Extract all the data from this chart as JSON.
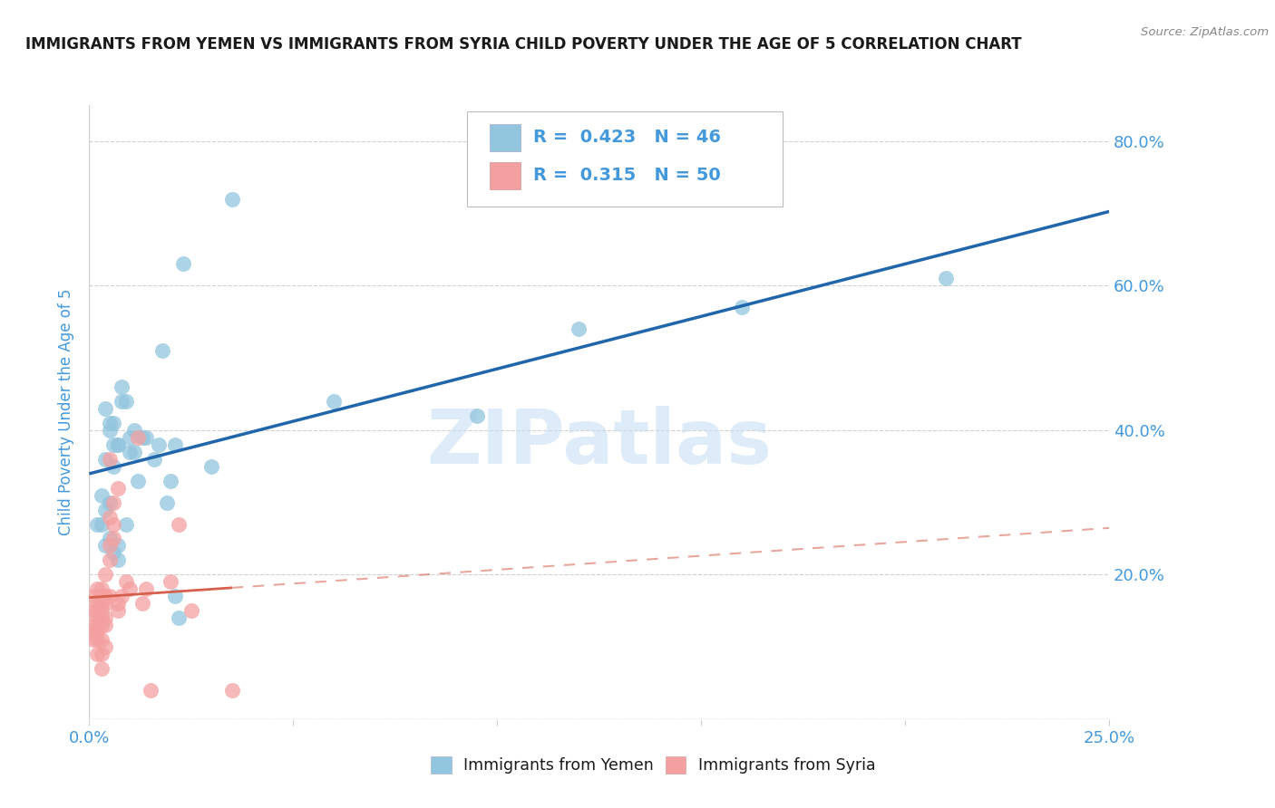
{
  "title": "IMMIGRANTS FROM YEMEN VS IMMIGRANTS FROM SYRIA CHILD POVERTY UNDER THE AGE OF 5 CORRELATION CHART",
  "source": "Source: ZipAtlas.com",
  "ylabel": "Child Poverty Under the Age of 5",
  "xlim": [
    0.0,
    0.25
  ],
  "ylim": [
    0.0,
    0.85
  ],
  "xticks": [
    0.0,
    0.05,
    0.1,
    0.15,
    0.2,
    0.25
  ],
  "xtick_labels": [
    "0.0%",
    "",
    "",
    "",
    "",
    "25.0%"
  ],
  "yticks": [
    0.0,
    0.2,
    0.4,
    0.6,
    0.8
  ],
  "ytick_labels_right": [
    "",
    "20.0%",
    "40.0%",
    "60.0%",
    "80.0%"
  ],
  "legend_r1": "0.423",
  "legend_n1": "46",
  "legend_r2": "0.315",
  "legend_n2": "50",
  "watermark": "ZIPatlas",
  "yemen_color": "#92c5de",
  "syria_color": "#f4a0a0",
  "yemen_line_color": "#2166ac",
  "syria_solid_color": "#d6604d",
  "syria_dash_color": "#f4a0a0",
  "grid_color": "#d0d0d0",
  "tick_color": "#4499dd",
  "title_color": "#1a1a1a",
  "source_color": "#888888",
  "bg_color": "#ffffff",
  "watermark_color": "#c8dff5",
  "yemen_scatter": [
    [
      0.002,
      0.27
    ],
    [
      0.003,
      0.31
    ],
    [
      0.003,
      0.27
    ],
    [
      0.004,
      0.24
    ],
    [
      0.004,
      0.29
    ],
    [
      0.004,
      0.43
    ],
    [
      0.004,
      0.36
    ],
    [
      0.005,
      0.25
    ],
    [
      0.005,
      0.3
    ],
    [
      0.005,
      0.4
    ],
    [
      0.005,
      0.41
    ],
    [
      0.006,
      0.23
    ],
    [
      0.006,
      0.35
    ],
    [
      0.006,
      0.38
    ],
    [
      0.006,
      0.41
    ],
    [
      0.007,
      0.22
    ],
    [
      0.007,
      0.24
    ],
    [
      0.007,
      0.38
    ],
    [
      0.007,
      0.38
    ],
    [
      0.008,
      0.44
    ],
    [
      0.008,
      0.46
    ],
    [
      0.009,
      0.27
    ],
    [
      0.009,
      0.44
    ],
    [
      0.01,
      0.37
    ],
    [
      0.01,
      0.39
    ],
    [
      0.011,
      0.37
    ],
    [
      0.011,
      0.4
    ],
    [
      0.012,
      0.33
    ],
    [
      0.013,
      0.39
    ],
    [
      0.014,
      0.39
    ],
    [
      0.016,
      0.36
    ],
    [
      0.017,
      0.38
    ],
    [
      0.018,
      0.51
    ],
    [
      0.019,
      0.3
    ],
    [
      0.02,
      0.33
    ],
    [
      0.021,
      0.38
    ],
    [
      0.021,
      0.17
    ],
    [
      0.022,
      0.14
    ],
    [
      0.023,
      0.63
    ],
    [
      0.03,
      0.35
    ],
    [
      0.035,
      0.72
    ],
    [
      0.06,
      0.44
    ],
    [
      0.095,
      0.42
    ],
    [
      0.12,
      0.54
    ],
    [
      0.16,
      0.57
    ],
    [
      0.21,
      0.61
    ]
  ],
  "syria_scatter": [
    [
      0.001,
      0.17
    ],
    [
      0.001,
      0.15
    ],
    [
      0.001,
      0.13
    ],
    [
      0.001,
      0.12
    ],
    [
      0.001,
      0.11
    ],
    [
      0.002,
      0.18
    ],
    [
      0.002,
      0.16
    ],
    [
      0.002,
      0.15
    ],
    [
      0.002,
      0.14
    ],
    [
      0.002,
      0.13
    ],
    [
      0.002,
      0.12
    ],
    [
      0.002,
      0.11
    ],
    [
      0.002,
      0.09
    ],
    [
      0.003,
      0.18
    ],
    [
      0.003,
      0.17
    ],
    [
      0.003,
      0.16
    ],
    [
      0.003,
      0.15
    ],
    [
      0.003,
      0.14
    ],
    [
      0.003,
      0.13
    ],
    [
      0.003,
      0.11
    ],
    [
      0.003,
      0.09
    ],
    [
      0.003,
      0.07
    ],
    [
      0.004,
      0.2
    ],
    [
      0.004,
      0.17
    ],
    [
      0.004,
      0.16
    ],
    [
      0.004,
      0.14
    ],
    [
      0.004,
      0.13
    ],
    [
      0.004,
      0.1
    ],
    [
      0.005,
      0.36
    ],
    [
      0.005,
      0.28
    ],
    [
      0.005,
      0.24
    ],
    [
      0.005,
      0.22
    ],
    [
      0.005,
      0.17
    ],
    [
      0.006,
      0.3
    ],
    [
      0.006,
      0.27
    ],
    [
      0.006,
      0.25
    ],
    [
      0.007,
      0.32
    ],
    [
      0.007,
      0.16
    ],
    [
      0.007,
      0.15
    ],
    [
      0.008,
      0.17
    ],
    [
      0.009,
      0.19
    ],
    [
      0.01,
      0.18
    ],
    [
      0.012,
      0.39
    ],
    [
      0.013,
      0.16
    ],
    [
      0.014,
      0.18
    ],
    [
      0.015,
      0.04
    ],
    [
      0.02,
      0.19
    ],
    [
      0.022,
      0.27
    ],
    [
      0.025,
      0.15
    ],
    [
      0.035,
      0.04
    ]
  ]
}
